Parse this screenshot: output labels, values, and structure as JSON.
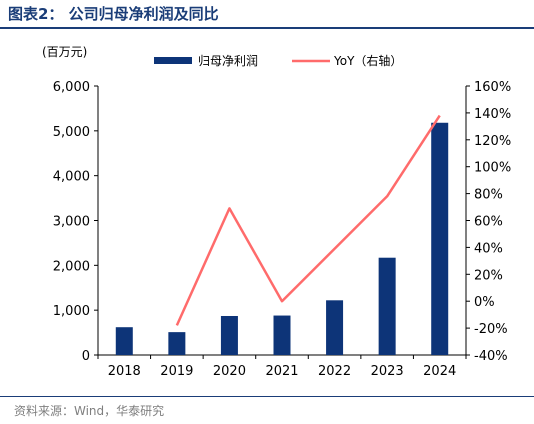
{
  "header": {
    "title": "图表2： 公司归母净利润及同比"
  },
  "footer": {
    "source": "资料来源：Wind，华泰研究"
  },
  "colors": {
    "bar": "#0d3478",
    "line": "#ff6b6b",
    "title": "#1a3d78",
    "axis": "#000000",
    "source": "#7f7f7f"
  },
  "chart_data": {
    "type": "bar",
    "unit_label": "(百万元)",
    "categories": [
      "2018",
      "2019",
      "2020",
      "2021",
      "2022",
      "2023",
      "2024"
    ],
    "series": [
      {
        "name": "归母净利润",
        "type": "bar",
        "axis": "left",
        "values": [
          620,
          510,
          870,
          880,
          1220,
          2170,
          5180
        ]
      },
      {
        "name": "YoY（右轴）",
        "type": "line",
        "axis": "right",
        "values": [
          null,
          -18,
          69,
          0,
          39,
          78,
          138
        ]
      }
    ],
    "ylim": [
      0,
      6000
    ],
    "y_ticks": [
      "0",
      "1,000",
      "2,000",
      "3,000",
      "4,000",
      "5,000",
      "6,000"
    ],
    "y2lim": [
      -40,
      160
    ],
    "y2_ticks": [
      "-40%",
      "-20%",
      "0%",
      "20%",
      "40%",
      "60%",
      "80%",
      "100%",
      "120%",
      "140%",
      "160%"
    ],
    "grid": false,
    "legend_position": "top"
  }
}
